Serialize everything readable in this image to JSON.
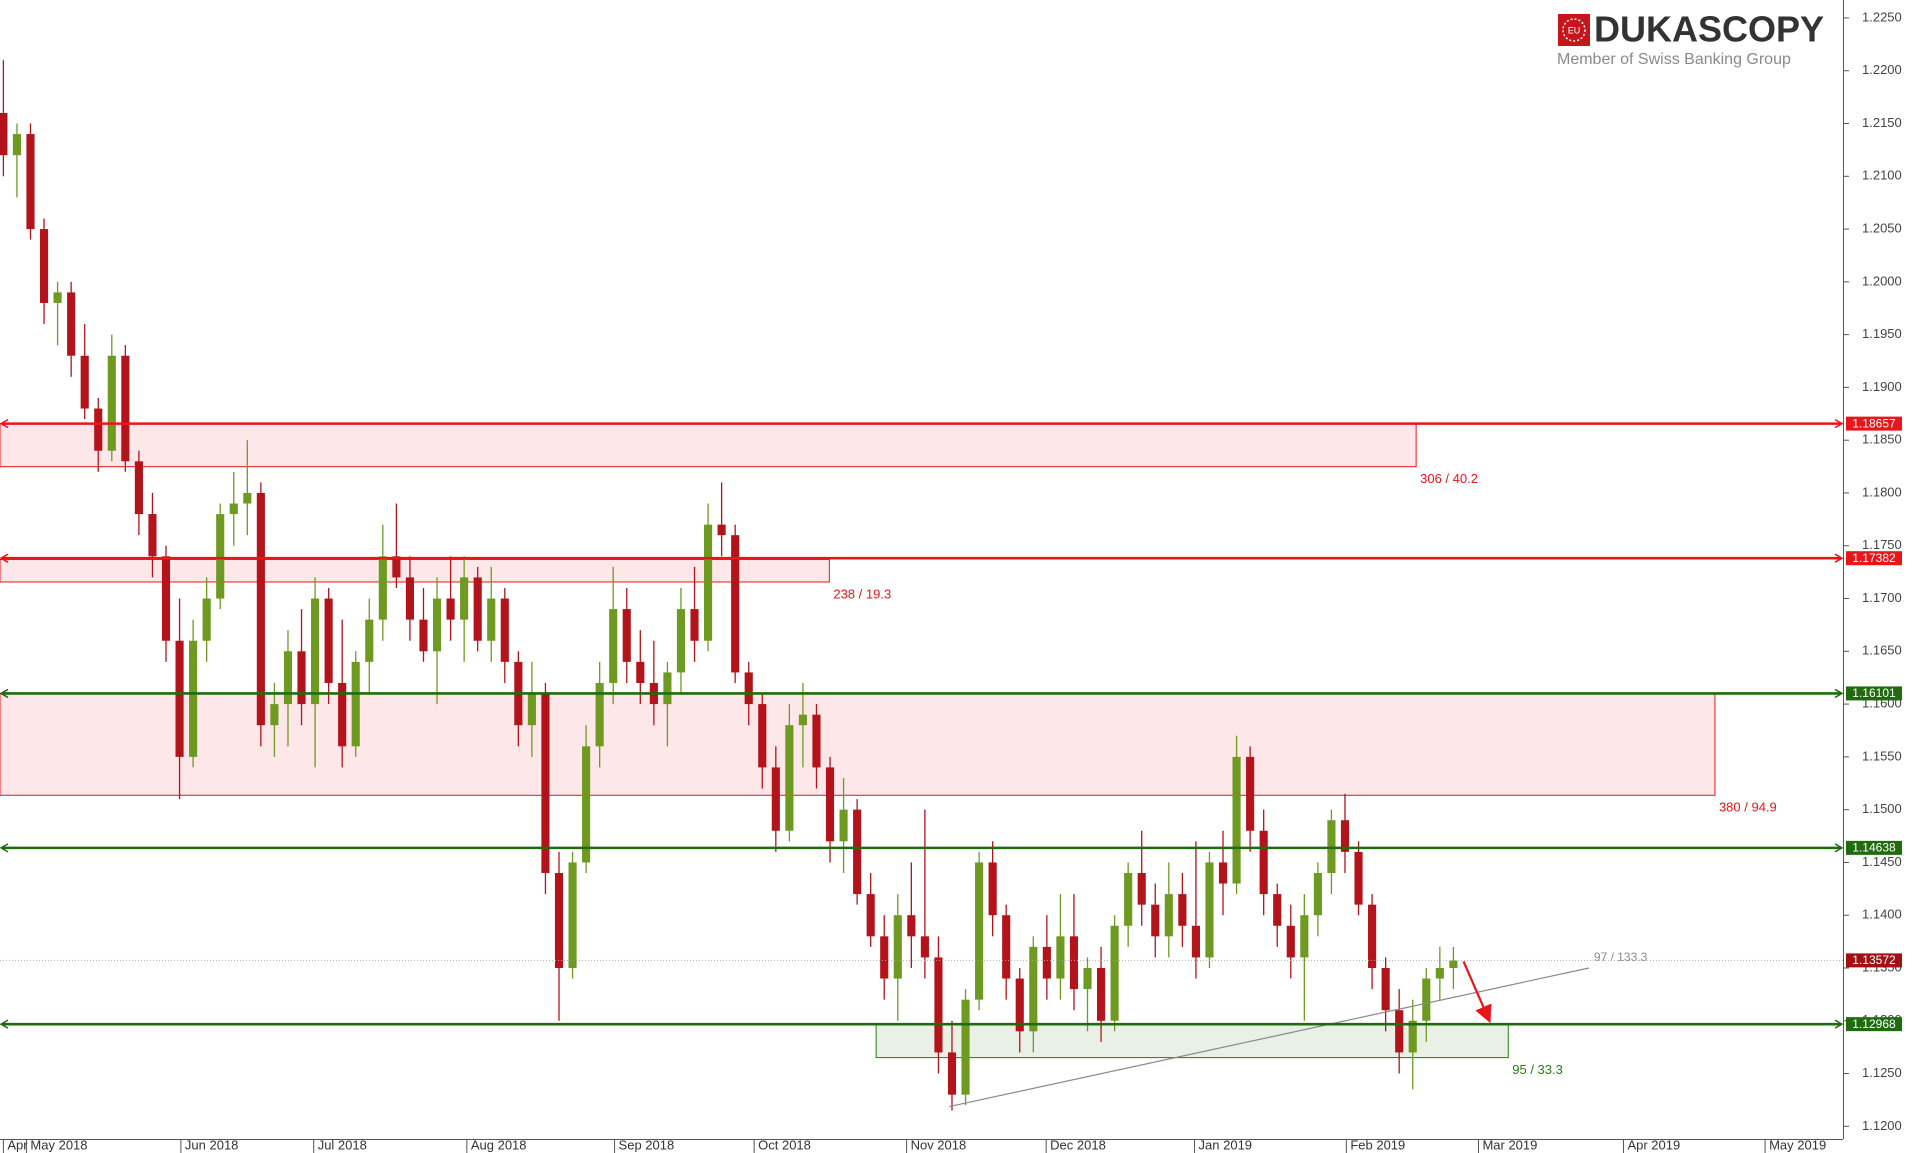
{
  "logo": {
    "badge": "EU",
    "brand": "DUKASCOPY",
    "tagline": "Member of Swiss Banking Group"
  },
  "chart_data": {
    "type": "candlestick",
    "up_color": "#6f9a22",
    "down_color": "#b3141b",
    "xlim": [
      -0.5,
      271.5
    ],
    "ylim": [
      1.1188,
      1.2267
    ],
    "xticks": [
      {
        "value": 0,
        "label": "Apr"
      },
      {
        "value": 3.4,
        "label": "May 2018"
      },
      {
        "value": 26.2,
        "label": "Jun 2018"
      },
      {
        "value": 45.8,
        "label": "Jul 2018"
      },
      {
        "value": 68.4,
        "label": "Aug 2018"
      },
      {
        "value": 90.2,
        "label": "Sep 2018"
      },
      {
        "value": 110.8,
        "label": "Oct 2018"
      },
      {
        "value": 133.3,
        "label": "Nov 2018"
      },
      {
        "value": 153.9,
        "label": "Dec 2018"
      },
      {
        "value": 175.8,
        "label": "Jan 2019"
      },
      {
        "value": 198.2,
        "label": "Feb 2019"
      },
      {
        "value": 217.7,
        "label": "Mar 2019"
      },
      {
        "value": 239.1,
        "label": "Apr 2019"
      },
      {
        "value": 260,
        "label": "May 2019"
      }
    ],
    "yticks": [
      {
        "value": 1.12,
        "label": "1.1200"
      },
      {
        "value": 1.125,
        "label": "1.1250"
      },
      {
        "value": 1.13,
        "label": "1.1300"
      },
      {
        "value": 1.135,
        "label": "1.1350"
      },
      {
        "value": 1.14,
        "label": "1.1400"
      },
      {
        "value": 1.145,
        "label": "1.1450"
      },
      {
        "value": 1.15,
        "label": "1.1500"
      },
      {
        "value": 1.155,
        "label": "1.1550"
      },
      {
        "value": 1.16,
        "label": "1.1600"
      },
      {
        "value": 1.165,
        "label": "1.1650"
      },
      {
        "value": 1.17,
        "label": "1.1700"
      },
      {
        "value": 1.175,
        "label": "1.1750"
      },
      {
        "value": 1.18,
        "label": "1.1800"
      },
      {
        "value": 1.185,
        "label": "1.1850"
      },
      {
        "value": 1.19,
        "label": "1.1900"
      },
      {
        "value": 1.195,
        "label": "1.1950"
      },
      {
        "value": 1.2,
        "label": "1.2000"
      },
      {
        "value": 1.205,
        "label": "1.2050"
      },
      {
        "value": 1.21,
        "label": "1.2100"
      },
      {
        "value": 1.215,
        "label": "1.2150"
      },
      {
        "value": 1.22,
        "label": "1.2200"
      },
      {
        "value": 1.225,
        "label": "1.2250"
      }
    ],
    "x": [
      0,
      2,
      4,
      6,
      8,
      10,
      12,
      14,
      16,
      18,
      20,
      22,
      24,
      26,
      28,
      30,
      32,
      34,
      36,
      38,
      40,
      42,
      44,
      46,
      48,
      50,
      52,
      54,
      56,
      58,
      60,
      62,
      64,
      66,
      68,
      70,
      72,
      74,
      76,
      78,
      80,
      82,
      84,
      86,
      88,
      90,
      92,
      94,
      96,
      98,
      100,
      102,
      104,
      106,
      108,
      110,
      112,
      114,
      116,
      118,
      120,
      122,
      124,
      126,
      128,
      130,
      132,
      134,
      136,
      138,
      140,
      142,
      144,
      146,
      148,
      150,
      152,
      154,
      156,
      158,
      160,
      162,
      164,
      166,
      168,
      170,
      172,
      174,
      176,
      178,
      180,
      182,
      184,
      186,
      188,
      190,
      192,
      194,
      196,
      198,
      200,
      202,
      204,
      206,
      208,
      210,
      212,
      214
    ],
    "candles": [
      [
        1.216,
        1.221,
        1.21,
        1.212
      ],
      [
        1.212,
        1.215,
        1.208,
        1.214
      ],
      [
        1.214,
        1.215,
        1.204,
        1.205
      ],
      [
        1.205,
        1.206,
        1.196,
        1.198
      ],
      [
        1.198,
        1.2,
        1.194,
        1.199
      ],
      [
        1.199,
        1.2,
        1.191,
        1.193
      ],
      [
        1.193,
        1.196,
        1.187,
        1.188
      ],
      [
        1.188,
        1.189,
        1.182,
        1.184
      ],
      [
        1.184,
        1.195,
        1.183,
        1.193
      ],
      [
        1.193,
        1.194,
        1.182,
        1.183
      ],
      [
        1.183,
        1.184,
        1.176,
        1.178
      ],
      [
        1.178,
        1.18,
        1.172,
        1.174
      ],
      [
        1.174,
        1.175,
        1.164,
        1.166
      ],
      [
        1.166,
        1.17,
        1.151,
        1.155
      ],
      [
        1.155,
        1.168,
        1.154,
        1.166
      ],
      [
        1.166,
        1.172,
        1.164,
        1.17
      ],
      [
        1.17,
        1.179,
        1.169,
        1.178
      ],
      [
        1.178,
        1.182,
        1.175,
        1.179
      ],
      [
        1.179,
        1.185,
        1.176,
        1.18
      ],
      [
        1.18,
        1.181,
        1.156,
        1.158
      ],
      [
        1.158,
        1.162,
        1.155,
        1.16
      ],
      [
        1.16,
        1.167,
        1.156,
        1.165
      ],
      [
        1.165,
        1.169,
        1.158,
        1.16
      ],
      [
        1.16,
        1.172,
        1.154,
        1.17
      ],
      [
        1.17,
        1.171,
        1.16,
        1.162
      ],
      [
        1.162,
        1.168,
        1.154,
        1.156
      ],
      [
        1.156,
        1.165,
        1.155,
        1.164
      ],
      [
        1.164,
        1.17,
        1.161,
        1.168
      ],
      [
        1.168,
        1.177,
        1.166,
        1.174
      ],
      [
        1.174,
        1.179,
        1.171,
        1.172
      ],
      [
        1.172,
        1.174,
        1.166,
        1.168
      ],
      [
        1.168,
        1.171,
        1.164,
        1.165
      ],
      [
        1.165,
        1.172,
        1.16,
        1.17
      ],
      [
        1.17,
        1.174,
        1.166,
        1.168
      ],
      [
        1.168,
        1.174,
        1.164,
        1.172
      ],
      [
        1.172,
        1.173,
        1.165,
        1.166
      ],
      [
        1.166,
        1.173,
        1.164,
        1.17
      ],
      [
        1.17,
        1.171,
        1.162,
        1.164
      ],
      [
        1.164,
        1.165,
        1.156,
        1.158
      ],
      [
        1.158,
        1.164,
        1.155,
        1.161
      ],
      [
        1.161,
        1.162,
        1.142,
        1.144
      ],
      [
        1.144,
        1.146,
        1.13,
        1.135
      ],
      [
        1.135,
        1.146,
        1.134,
        1.145
      ],
      [
        1.145,
        1.158,
        1.144,
        1.156
      ],
      [
        1.156,
        1.164,
        1.154,
        1.162
      ],
      [
        1.162,
        1.173,
        1.16,
        1.169
      ],
      [
        1.169,
        1.171,
        1.162,
        1.164
      ],
      [
        1.164,
        1.167,
        1.16,
        1.162
      ],
      [
        1.162,
        1.166,
        1.158,
        1.16
      ],
      [
        1.16,
        1.164,
        1.156,
        1.163
      ],
      [
        1.163,
        1.171,
        1.161,
        1.169
      ],
      [
        1.169,
        1.173,
        1.164,
        1.166
      ],
      [
        1.166,
        1.179,
        1.165,
        1.177
      ],
      [
        1.177,
        1.181,
        1.174,
        1.176
      ],
      [
        1.176,
        1.177,
        1.162,
        1.163
      ],
      [
        1.163,
        1.164,
        1.158,
        1.16
      ],
      [
        1.16,
        1.161,
        1.152,
        1.154
      ],
      [
        1.154,
        1.156,
        1.146,
        1.148
      ],
      [
        1.148,
        1.16,
        1.147,
        1.158
      ],
      [
        1.158,
        1.162,
        1.154,
        1.159
      ],
      [
        1.159,
        1.16,
        1.152,
        1.154
      ],
      [
        1.154,
        1.155,
        1.145,
        1.147
      ],
      [
        1.147,
        1.153,
        1.144,
        1.15
      ],
      [
        1.15,
        1.151,
        1.141,
        1.142
      ],
      [
        1.142,
        1.144,
        1.137,
        1.138
      ],
      [
        1.138,
        1.14,
        1.132,
        1.134
      ],
      [
        1.134,
        1.142,
        1.13,
        1.14
      ],
      [
        1.14,
        1.145,
        1.135,
        1.138
      ],
      [
        1.138,
        1.15,
        1.134,
        1.136
      ],
      [
        1.136,
        1.138,
        1.125,
        1.127
      ],
      [
        1.127,
        1.13,
        1.1215,
        1.123
      ],
      [
        1.123,
        1.133,
        1.122,
        1.132
      ],
      [
        1.132,
        1.146,
        1.131,
        1.145
      ],
      [
        1.145,
        1.147,
        1.138,
        1.14
      ],
      [
        1.14,
        1.141,
        1.132,
        1.134
      ],
      [
        1.134,
        1.135,
        1.127,
        1.129
      ],
      [
        1.129,
        1.138,
        1.127,
        1.137
      ],
      [
        1.137,
        1.14,
        1.132,
        1.134
      ],
      [
        1.134,
        1.142,
        1.132,
        1.138
      ],
      [
        1.138,
        1.142,
        1.131,
        1.133
      ],
      [
        1.133,
        1.136,
        1.129,
        1.135
      ],
      [
        1.135,
        1.137,
        1.128,
        1.13
      ],
      [
        1.13,
        1.14,
        1.129,
        1.139
      ],
      [
        1.139,
        1.145,
        1.137,
        1.144
      ],
      [
        1.144,
        1.148,
        1.139,
        1.141
      ],
      [
        1.141,
        1.143,
        1.136,
        1.138
      ],
      [
        1.138,
        1.145,
        1.136,
        1.142
      ],
      [
        1.142,
        1.144,
        1.137,
        1.139
      ],
      [
        1.139,
        1.147,
        1.134,
        1.136
      ],
      [
        1.136,
        1.146,
        1.135,
        1.145
      ],
      [
        1.145,
        1.148,
        1.14,
        1.143
      ],
      [
        1.143,
        1.157,
        1.142,
        1.155
      ],
      [
        1.155,
        1.156,
        1.146,
        1.148
      ],
      [
        1.148,
        1.15,
        1.14,
        1.142
      ],
      [
        1.142,
        1.143,
        1.137,
        1.139
      ],
      [
        1.139,
        1.141,
        1.134,
        1.136
      ],
      [
        1.136,
        1.142,
        1.13,
        1.14
      ],
      [
        1.14,
        1.145,
        1.138,
        1.144
      ],
      [
        1.144,
        1.15,
        1.142,
        1.149
      ],
      [
        1.149,
        1.1515,
        1.144,
        1.146
      ],
      [
        1.146,
        1.147,
        1.14,
        1.141
      ],
      [
        1.141,
        1.142,
        1.133,
        1.135
      ],
      [
        1.135,
        1.136,
        1.129,
        1.131
      ],
      [
        1.131,
        1.133,
        1.125,
        1.127
      ],
      [
        1.127,
        1.132,
        1.1235,
        1.13
      ],
      [
        1.13,
        1.135,
        1.128,
        1.134
      ],
      [
        1.134,
        1.137,
        1.132,
        1.135
      ],
      [
        1.135,
        1.137,
        1.133,
        1.1357
      ]
    ],
    "zones": [
      {
        "x0": -0.5,
        "x1": 208.5,
        "y0": 1.18657,
        "y1": 1.18249,
        "label": "306 / 40.2",
        "color": "#e8161b"
      },
      {
        "x0": -0.5,
        "x1": 121.9,
        "y0": 1.1737,
        "y1": 1.17157,
        "label": "238 / 19.3",
        "color": "#e8161b"
      },
      {
        "x0": -0.5,
        "x1": 252.6,
        "y0": 1.16101,
        "y1": 1.15136,
        "label": "380 / 94.9",
        "color": "#e8161b"
      },
      {
        "x0": 128.8,
        "x1": 222.1,
        "y0": 1.12968,
        "y1": 1.12651,
        "label": "95 / 33.3",
        "color": "#2a7a12"
      }
    ],
    "levels": [
      {
        "value": 1.18657,
        "color": "#e8161b"
      },
      {
        "value": 1.17382,
        "color": "#e8161b"
      },
      {
        "value": 1.16101,
        "color": "#1f6b0e"
      },
      {
        "value": 1.14638,
        "color": "#1f6b0e"
      },
      {
        "value": 1.12968,
        "color": "#1f6b0e"
      }
    ],
    "current_price": {
      "value": 1.13572,
      "color": "#a01014"
    },
    "trendline": {
      "x": [
        139.6,
        234
      ],
      "y": [
        1.12187,
        1.135
      ],
      "label": "97 / 133.3",
      "color": "#8a8a8a"
    },
    "arrow": {
      "x": [
        215.5,
        219.2
      ],
      "y": [
        1.13562,
        1.13016
      ],
      "color": "#e8161b"
    }
  }
}
